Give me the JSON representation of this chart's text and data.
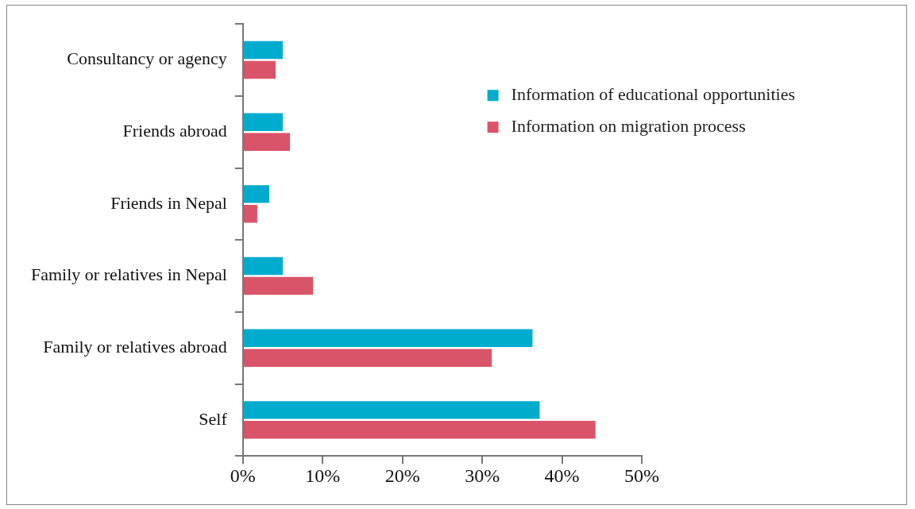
{
  "chart_data": {
    "type": "bar",
    "orientation": "horizontal",
    "categories": [
      "Consultancy or agency",
      "Friends abroad",
      "Friends in Nepal",
      "Family or relatives in Nepal",
      "Family or relatives abroad",
      "Self"
    ],
    "series": [
      {
        "name": "Information of educational opportunities",
        "color": "#00acce",
        "values": [
          5.0,
          5.0,
          3.3,
          5.0,
          36.3,
          37.2
        ]
      },
      {
        "name": "Information on migration process",
        "color": "#da5469",
        "values": [
          4.1,
          5.9,
          1.8,
          8.8,
          31.2,
          44.2
        ]
      }
    ],
    "xlim": [
      0,
      50
    ],
    "xticks": [
      {
        "value": 0,
        "label": "0%"
      },
      {
        "value": 10,
        "label": "10%"
      },
      {
        "value": 20,
        "label": "20%"
      },
      {
        "value": 30,
        "label": "30%"
      },
      {
        "value": 40,
        "label": "40%"
      },
      {
        "value": 50,
        "label": "50%"
      }
    ],
    "grid": false,
    "legend": "top right"
  }
}
